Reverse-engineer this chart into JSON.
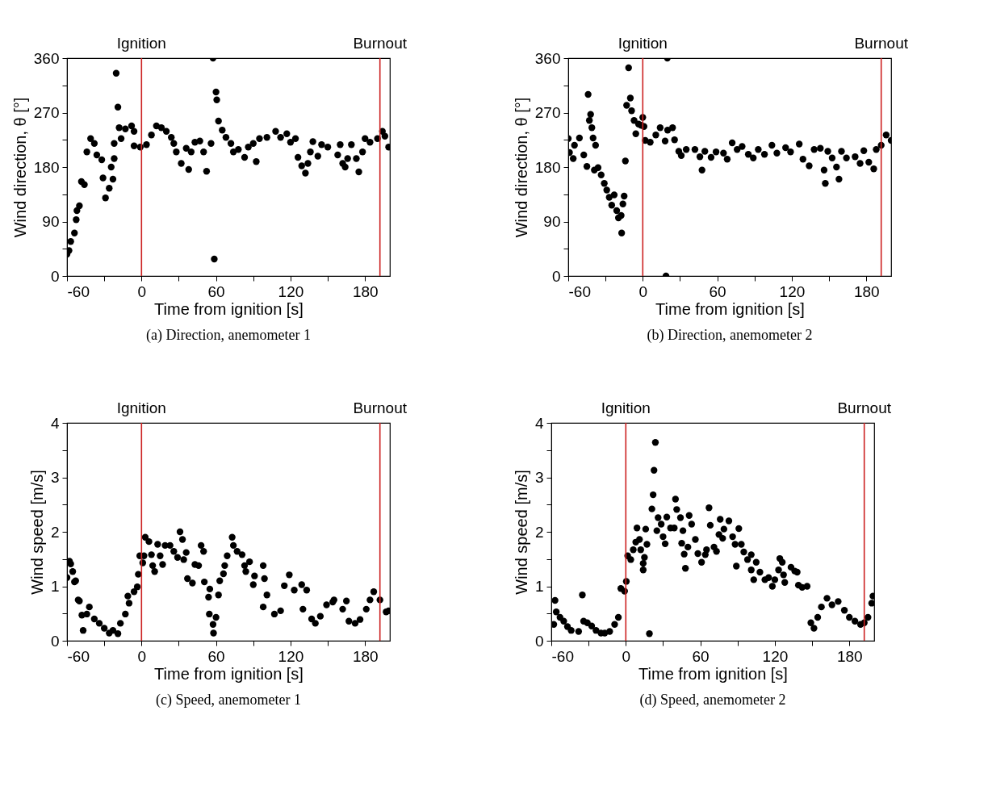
{
  "chart_data": [
    {
      "type": "scatter",
      "title": "(a) Direction, anemometer 1",
      "xlabel": "Time from ignition [s]",
      "ylabel": "Wind direction, θ [°]",
      "xlim": [
        -60,
        200
      ],
      "ylim": [
        0,
        360
      ],
      "xticks": [
        -60,
        {
          "value": -30,
          "label": null
        },
        0,
        {
          "value": 30,
          "label": null
        },
        60,
        {
          "value": 90,
          "label": null
        },
        120,
        {
          "value": 150,
          "label": null
        },
        180
      ],
      "yticks": [
        0,
        {
          "value": 45,
          "label": null
        },
        90,
        {
          "value": 135,
          "label": null
        },
        180,
        {
          "value": 225,
          "label": null
        },
        270,
        {
          "value": 315,
          "label": null
        },
        360
      ],
      "grid": false,
      "marker": "circle",
      "ref_lines": [
        {
          "axis": "x",
          "value": 0,
          "label": "Ignition",
          "color": "#cc2222"
        },
        {
          "axis": "x",
          "value": 192,
          "label": "Burnout",
          "color": "#cc2222"
        }
      ],
      "series": [
        {
          "color": "#000000",
          "x": [
            -60,
            -58.4,
            -57,
            -54,
            -52.6,
            -52,
            -50,
            -48.4,
            -46,
            -44,
            -41,
            -38,
            -36,
            -32,
            -31,
            -29,
            -26,
            -24.4,
            -23,
            -22,
            -22,
            -20.4,
            -19,
            -18,
            -16.4,
            -13,
            -8,
            -6,
            -6,
            -1,
            4,
            8,
            12,
            16,
            20,
            24,
            26,
            28,
            32,
            36,
            38,
            40,
            43,
            47,
            50,
            52.4,
            56,
            57.6,
            58.6,
            60,
            60.6,
            62,
            65,
            68,
            72,
            74,
            78,
            83,
            86,
            90,
            92.4,
            95,
            101,
            108,
            112,
            117,
            120,
            124,
            126,
            129,
            132,
            134,
            136,
            138,
            142,
            145,
            150,
            158,
            160,
            162,
            164,
            166,
            169,
            173,
            175,
            178,
            180,
            184,
            190,
            194,
            196,
            199
          ],
          "values": [
            36,
            42,
            57,
            71,
            93,
            108,
            116,
            156,
            151,
            205,
            227,
            219,
            200,
            192,
            162,
            129,
            145,
            180,
            160,
            194,
            219,
            335,
            279,
            245,
            227,
            243,
            248,
            239,
            215,
            213,
            217,
            233,
            248,
            245,
            239,
            229,
            219,
            205,
            186,
            211,
            176,
            205,
            221,
            223,
            205,
            173,
            219,
            360,
            28,
            304,
            291,
            256,
            241,
            229,
            219,
            205,
            209,
            196,
            213,
            219,
            189,
            227,
            229,
            239,
            229,
            235,
            221,
            227,
            196,
            182,
            170,
            186,
            205,
            222,
            198,
            217,
            213,
            200,
            217,
            186,
            180,
            194,
            217,
            194,
            172,
            205,
            227,
            221,
            227,
            239,
            231,
            213
          ]
        }
      ]
    },
    {
      "type": "scatter",
      "title": "(b) Direction, anemometer 2",
      "xlabel": "Time from ignition [s]",
      "ylabel": "Wind direction, θ [°]",
      "xlim": [
        -60,
        200
      ],
      "ylim": [
        0,
        360
      ],
      "xticks": [
        -60,
        {
          "value": -30,
          "label": null
        },
        0,
        {
          "value": 30,
          "label": null
        },
        60,
        {
          "value": 90,
          "label": null
        },
        120,
        {
          "value": 150,
          "label": null
        },
        180
      ],
      "yticks": [
        0,
        {
          "value": 45,
          "label": null
        },
        90,
        {
          "value": 135,
          "label": null
        },
        180,
        {
          "value": 225,
          "label": null
        },
        270,
        {
          "value": 315,
          "label": null
        },
        360
      ],
      "grid": false,
      "marker": "circle",
      "ref_lines": [
        {
          "axis": "x",
          "value": 0,
          "label": "Ignition",
          "color": "#cc2222"
        },
        {
          "axis": "x",
          "value": 192,
          "label": "Burnout",
          "color": "#cc2222"
        }
      ],
      "series": [
        {
          "color": "#000000",
          "x": [
            -60,
            -59,
            -56,
            -55,
            -51,
            -47.5,
            -45,
            -44,
            -43,
            -42,
            -41,
            -40,
            -38,
            -39,
            -36,
            -33.5,
            -31,
            -29,
            -27,
            -25,
            -23,
            -21,
            -19.6,
            -17.4,
            -17,
            -16,
            -15,
            -14,
            -13,
            -11.4,
            -10,
            -9,
            -7,
            -5.6,
            -3.4,
            -1.3,
            0,
            1,
            2,
            6,
            10.5,
            14,
            18,
            18.7,
            19.8,
            20,
            24,
            25.6,
            29,
            31,
            35,
            42,
            46,
            47.7,
            50,
            55,
            59,
            65,
            68,
            72,
            76,
            80,
            85,
            89,
            93,
            98,
            104,
            108,
            115,
            119,
            126,
            129,
            134,
            138,
            143,
            146,
            147,
            149,
            152.5,
            156,
            158,
            160,
            164,
            171,
            175,
            178,
            182,
            186,
            188,
            192,
            196,
            200
          ],
          "values": [
            227,
            204,
            194,
            216,
            228,
            200,
            181,
            300,
            257,
            267,
            245,
            228,
            216,
            175,
            179,
            167,
            153,
            142,
            130,
            117,
            134,
            108,
            96,
            100,
            71,
            119,
            132,
            190,
            282,
            344,
            294,
            273,
            257,
            235,
            251,
            249,
            262,
            247,
            224,
            221,
            233,
            245,
            223,
            0,
            360,
            241,
            245,
            225,
            206,
            199,
            209,
            209,
            197,
            175,
            206,
            196,
            205,
            203,
            193,
            220,
            209,
            214,
            201,
            195,
            209,
            201,
            216,
            203,
            212,
            205,
            218,
            193,
            182,
            209,
            211,
            175,
            153,
            206,
            195,
            180,
            160,
            206,
            195,
            197,
            186,
            207,
            188,
            177,
            209,
            216,
            233,
            224
          ]
        }
      ]
    },
    {
      "type": "scatter",
      "title": "(c) Speed, anemometer 1",
      "xlabel": "Time from ignition [s]",
      "ylabel": "Wind speed [m/s]",
      "xlim": [
        -60,
        200
      ],
      "ylim": [
        0,
        4
      ],
      "xticks": [
        -60,
        {
          "value": -30,
          "label": null
        },
        0,
        {
          "value": 30,
          "label": null
        },
        60,
        {
          "value": 90,
          "label": null
        },
        120,
        {
          "value": 150,
          "label": null
        },
        180
      ],
      "yticks": [
        0,
        {
          "value": 0.5,
          "label": null
        },
        1,
        {
          "value": 1.5,
          "label": null
        },
        2,
        {
          "value": 2.5,
          "label": null
        },
        3,
        {
          "value": 3.5,
          "label": null
        },
        4
      ],
      "grid": false,
      "marker": "circle",
      "ref_lines": [
        {
          "axis": "x",
          "value": 0,
          "label": "Ignition",
          "color": "#cc2222"
        },
        {
          "axis": "x",
          "value": 192,
          "label": "Burnout",
          "color": "#cc2222"
        }
      ],
      "series": [
        {
          "color": "#000000",
          "x": [
            -60,
            -58,
            -57,
            -55.4,
            -54,
            -53,
            -51,
            -50,
            -48,
            -47,
            -44,
            -42,
            -38,
            -34,
            -30,
            -26,
            -23,
            -19,
            -17,
            -13,
            -11,
            -10,
            -6,
            -3.4,
            -2.6,
            -1.4,
            1,
            2,
            3,
            6,
            8,
            9,
            10.6,
            13,
            15,
            17,
            19,
            23,
            26,
            29,
            31,
            33,
            34,
            36,
            37,
            41,
            43,
            46,
            48,
            50,
            50.6,
            54,
            55,
            54.6,
            57.6,
            58,
            60,
            62,
            63,
            66,
            67,
            69,
            73,
            74,
            77,
            81,
            83,
            84,
            87,
            90,
            91,
            98,
            98,
            99,
            101,
            107,
            112,
            115,
            119,
            123,
            129,
            130,
            133,
            137,
            140,
            144,
            149,
            154,
            155,
            162,
            165,
            167,
            172,
            176,
            181,
            184,
            187,
            192,
            197,
            199
          ],
          "values": [
            1.16,
            1.46,
            1.41,
            1.27,
            1.08,
            1.1,
            0.75,
            0.73,
            0.47,
            0.19,
            0.49,
            0.62,
            0.4,
            0.32,
            0.23,
            0.14,
            0.19,
            0.13,
            0.32,
            0.49,
            0.82,
            0.69,
            0.9,
            0.99,
            1.22,
            1.56,
            1.43,
            1.56,
            1.9,
            1.82,
            1.58,
            1.38,
            1.27,
            1.77,
            1.56,
            1.4,
            1.75,
            1.75,
            1.64,
            1.53,
            2.0,
            1.86,
            1.49,
            1.62,
            1.14,
            1.06,
            1.4,
            1.38,
            1.75,
            1.64,
            1.08,
            0.8,
            0.95,
            0.49,
            0.3,
            0.14,
            0.43,
            0.84,
            1.1,
            1.23,
            1.38,
            1.56,
            1.9,
            1.75,
            1.64,
            1.58,
            1.38,
            1.27,
            1.45,
            1.03,
            1.19,
            1.38,
            0.62,
            1.14,
            0.84,
            0.49,
            0.55,
            1.01,
            1.21,
            0.93,
            1.03,
            0.58,
            0.93,
            0.4,
            0.32,
            0.45,
            0.66,
            0.71,
            0.75,
            0.58,
            0.73,
            0.36,
            0.32,
            0.39,
            0.58,
            0.75,
            0.9,
            0.75,
            0.53,
            0.55
          ]
        }
      ]
    },
    {
      "type": "scatter",
      "title": "(d) Speed, anemometer 2",
      "xlabel": "Time from ignition [s]",
      "ylabel": "Wind speed [m/s]",
      "xlim": [
        -60,
        200
      ],
      "ylim": [
        0,
        4
      ],
      "xticks": [
        -60,
        {
          "value": -30,
          "label": null
        },
        0,
        {
          "value": 30,
          "label": null
        },
        60,
        {
          "value": 90,
          "label": null
        },
        120,
        {
          "value": 150,
          "label": null
        },
        180
      ],
      "yticks": [
        0,
        {
          "value": 0.5,
          "label": null
        },
        1,
        {
          "value": 1.5,
          "label": null
        },
        2,
        {
          "value": 2.5,
          "label": null
        },
        3,
        {
          "value": 3.5,
          "label": null
        },
        4
      ],
      "grid": false,
      "marker": "circle",
      "ref_lines": [
        {
          "axis": "x",
          "value": 0,
          "label": "Ignition",
          "color": "#cc2222"
        },
        {
          "axis": "x",
          "value": 192,
          "label": "Burnout",
          "color": "#cc2222"
        }
      ],
      "series": [
        {
          "color": "#000000",
          "x": [
            -58,
            -57,
            -56,
            -53,
            -50,
            -47,
            -44,
            -38,
            -35,
            -34,
            -31,
            -27.5,
            -24,
            -20,
            -17,
            -13,
            -9,
            -6,
            -4,
            -1,
            0.4,
            1.5,
            4,
            6,
            8,
            9,
            11,
            12,
            14,
            14,
            15,
            16,
            17,
            19,
            21,
            22,
            22.7,
            23.8,
            25,
            26,
            28.5,
            30,
            31.7,
            33,
            36,
            39,
            40,
            41,
            44,
            46,
            45,
            47,
            48,
            50,
            51,
            53,
            56,
            58,
            61,
            64,
            65,
            67,
            68,
            71,
            73,
            75,
            76,
            78,
            79,
            83,
            86,
            88,
            89,
            91,
            93,
            95,
            98,
            101,
            101,
            103,
            105,
            108,
            112,
            115,
            118,
            120,
            124,
            126,
            123,
            127,
            128,
            133,
            136,
            138,
            139,
            142,
            146,
            149,
            151.5,
            154.5,
            157.5,
            162,
            166,
            171,
            176,
            180,
            184.5,
            189,
            192,
            195,
            198,
            199
          ],
          "values": [
            0.3,
            0.74,
            0.53,
            0.43,
            0.36,
            0.26,
            0.19,
            0.17,
            0.84,
            0.36,
            0.33,
            0.27,
            0.19,
            0.14,
            0.14,
            0.17,
            0.3,
            0.43,
            0.96,
            0.91,
            1.09,
            1.56,
            1.49,
            1.67,
            1.81,
            2.07,
            1.86,
            1.67,
            1.42,
            1.3,
            1.53,
            2.05,
            1.77,
            0.13,
            2.42,
            2.68,
            3.13,
            3.64,
            2.02,
            2.26,
            2.14,
            1.91,
            1.78,
            2.27,
            2.07,
            2.07,
            2.6,
            2.41,
            2.26,
            2.02,
            1.79,
            1.59,
            1.33,
            1.72,
            2.3,
            2.14,
            1.86,
            1.6,
            1.44,
            1.58,
            1.67,
            2.44,
            2.12,
            1.72,
            1.64,
            1.95,
            2.23,
            1.88,
            2.05,
            2.2,
            1.91,
            1.77,
            1.37,
            2.06,
            1.77,
            1.63,
            1.49,
            1.58,
            1.3,
            1.12,
            1.44,
            1.26,
            1.12,
            1.16,
            1.0,
            1.12,
            1.51,
            1.44,
            1.3,
            1.21,
            1.07,
            1.35,
            1.28,
            1.26,
            1.02,
            0.98,
            1.0,
            0.33,
            0.23,
            0.43,
            0.62,
            0.78,
            0.66,
            0.72,
            0.56,
            0.43,
            0.36,
            0.3,
            0.33,
            0.43,
            0.69,
            0.82
          ]
        }
      ]
    }
  ]
}
